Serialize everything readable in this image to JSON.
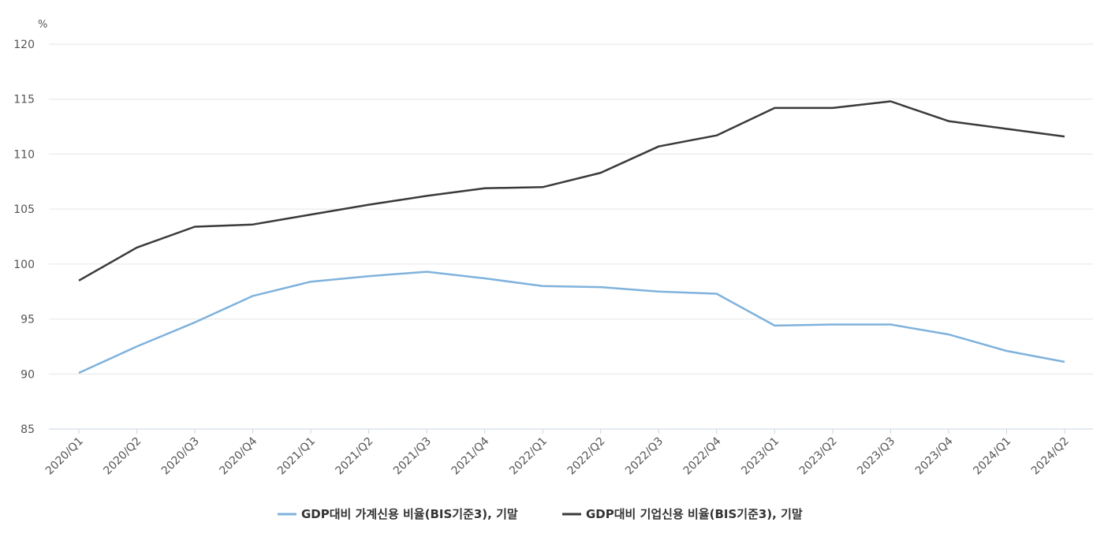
{
  "chart_data": {
    "type": "line",
    "unit_label": "%",
    "ylim": [
      85,
      120
    ],
    "y_ticks": [
      85,
      90,
      95,
      100,
      105,
      110,
      115,
      120
    ],
    "categories": [
      "2020/Q1",
      "2020/Q2",
      "2020/Q3",
      "2020/Q4",
      "2021/Q1",
      "2021/Q2",
      "2021/Q3",
      "2021/Q4",
      "2022/Q1",
      "2022/Q2",
      "2022/Q3",
      "2022/Q4",
      "2023/Q1",
      "2023/Q2",
      "2023/Q3",
      "2023/Q4",
      "2024/Q1",
      "2024/Q2"
    ],
    "series": [
      {
        "name": "GDP대비 가계신용 비율(BIS기준3), 기말",
        "color": "#7fb2dc",
        "values": [
          90.1,
          92.5,
          94.7,
          97.1,
          98.4,
          98.9,
          99.3,
          98.7,
          98.0,
          97.9,
          97.5,
          97.3,
          94.4,
          94.5,
          94.5,
          93.6,
          92.1,
          91.1
        ]
      },
      {
        "name": "GDP대비 기업신용 비율(BIS기준3), 기말",
        "color": "#3a3a3a",
        "values": [
          98.5,
          101.5,
          103.4,
          103.6,
          104.5,
          105.4,
          106.2,
          106.9,
          107.0,
          108.3,
          110.7,
          111.7,
          114.2,
          114.2,
          114.8,
          113.0,
          112.3,
          111.6
        ]
      }
    ],
    "legend_position": "bottom-center",
    "grid": true
  }
}
